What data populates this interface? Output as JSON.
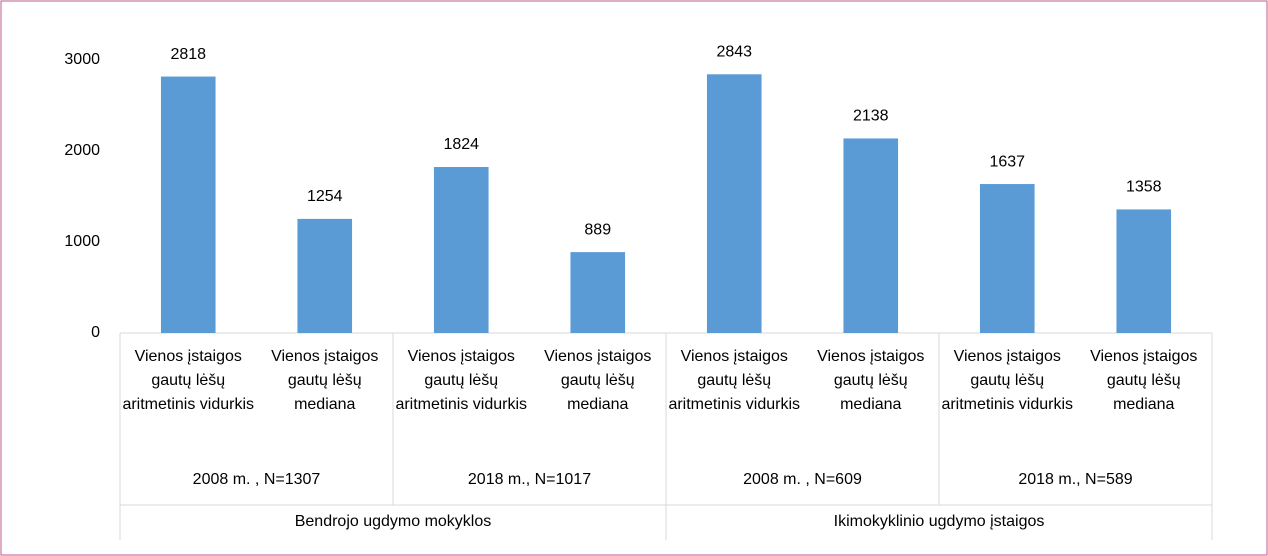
{
  "chart_data": {
    "type": "bar",
    "categories": [
      "Vienos įstaigos gautų lėšų aritmetinis vidurkis",
      "Vienos įstaigos gautų lėšų mediana",
      "Vienos įstaigos gautų lėšų aritmetinis vidurkis",
      "Vienos įstaigos gautų lėšų mediana",
      "Vienos įstaigos gautų lėšų aritmetinis vidurkis",
      "Vienos įstaigos gautų lėšų mediana",
      "Vienos įstaigos gautų lėšų aritmetinis vidurkis",
      "Vienos įstaigos gautų lėšų mediana"
    ],
    "values": [
      2818,
      1254,
      1824,
      889,
      2843,
      2138,
      1637,
      1358
    ],
    "groups": [
      {
        "name": "Bendrojo ugdymo mokyklos",
        "subgroups": [
          "2008 m. , N=1307",
          "2018 m., N=1017"
        ]
      },
      {
        "name": "Ikimokyklinio ugdymo įstaigos",
        "subgroups": [
          "2008 m. , N=609",
          "2018 m., N=589"
        ]
      }
    ],
    "color": "#5b9bd5",
    "ylim": [
      0,
      3000
    ],
    "yticks": [
      0,
      1000,
      2000,
      3000
    ],
    "grid": false
  }
}
